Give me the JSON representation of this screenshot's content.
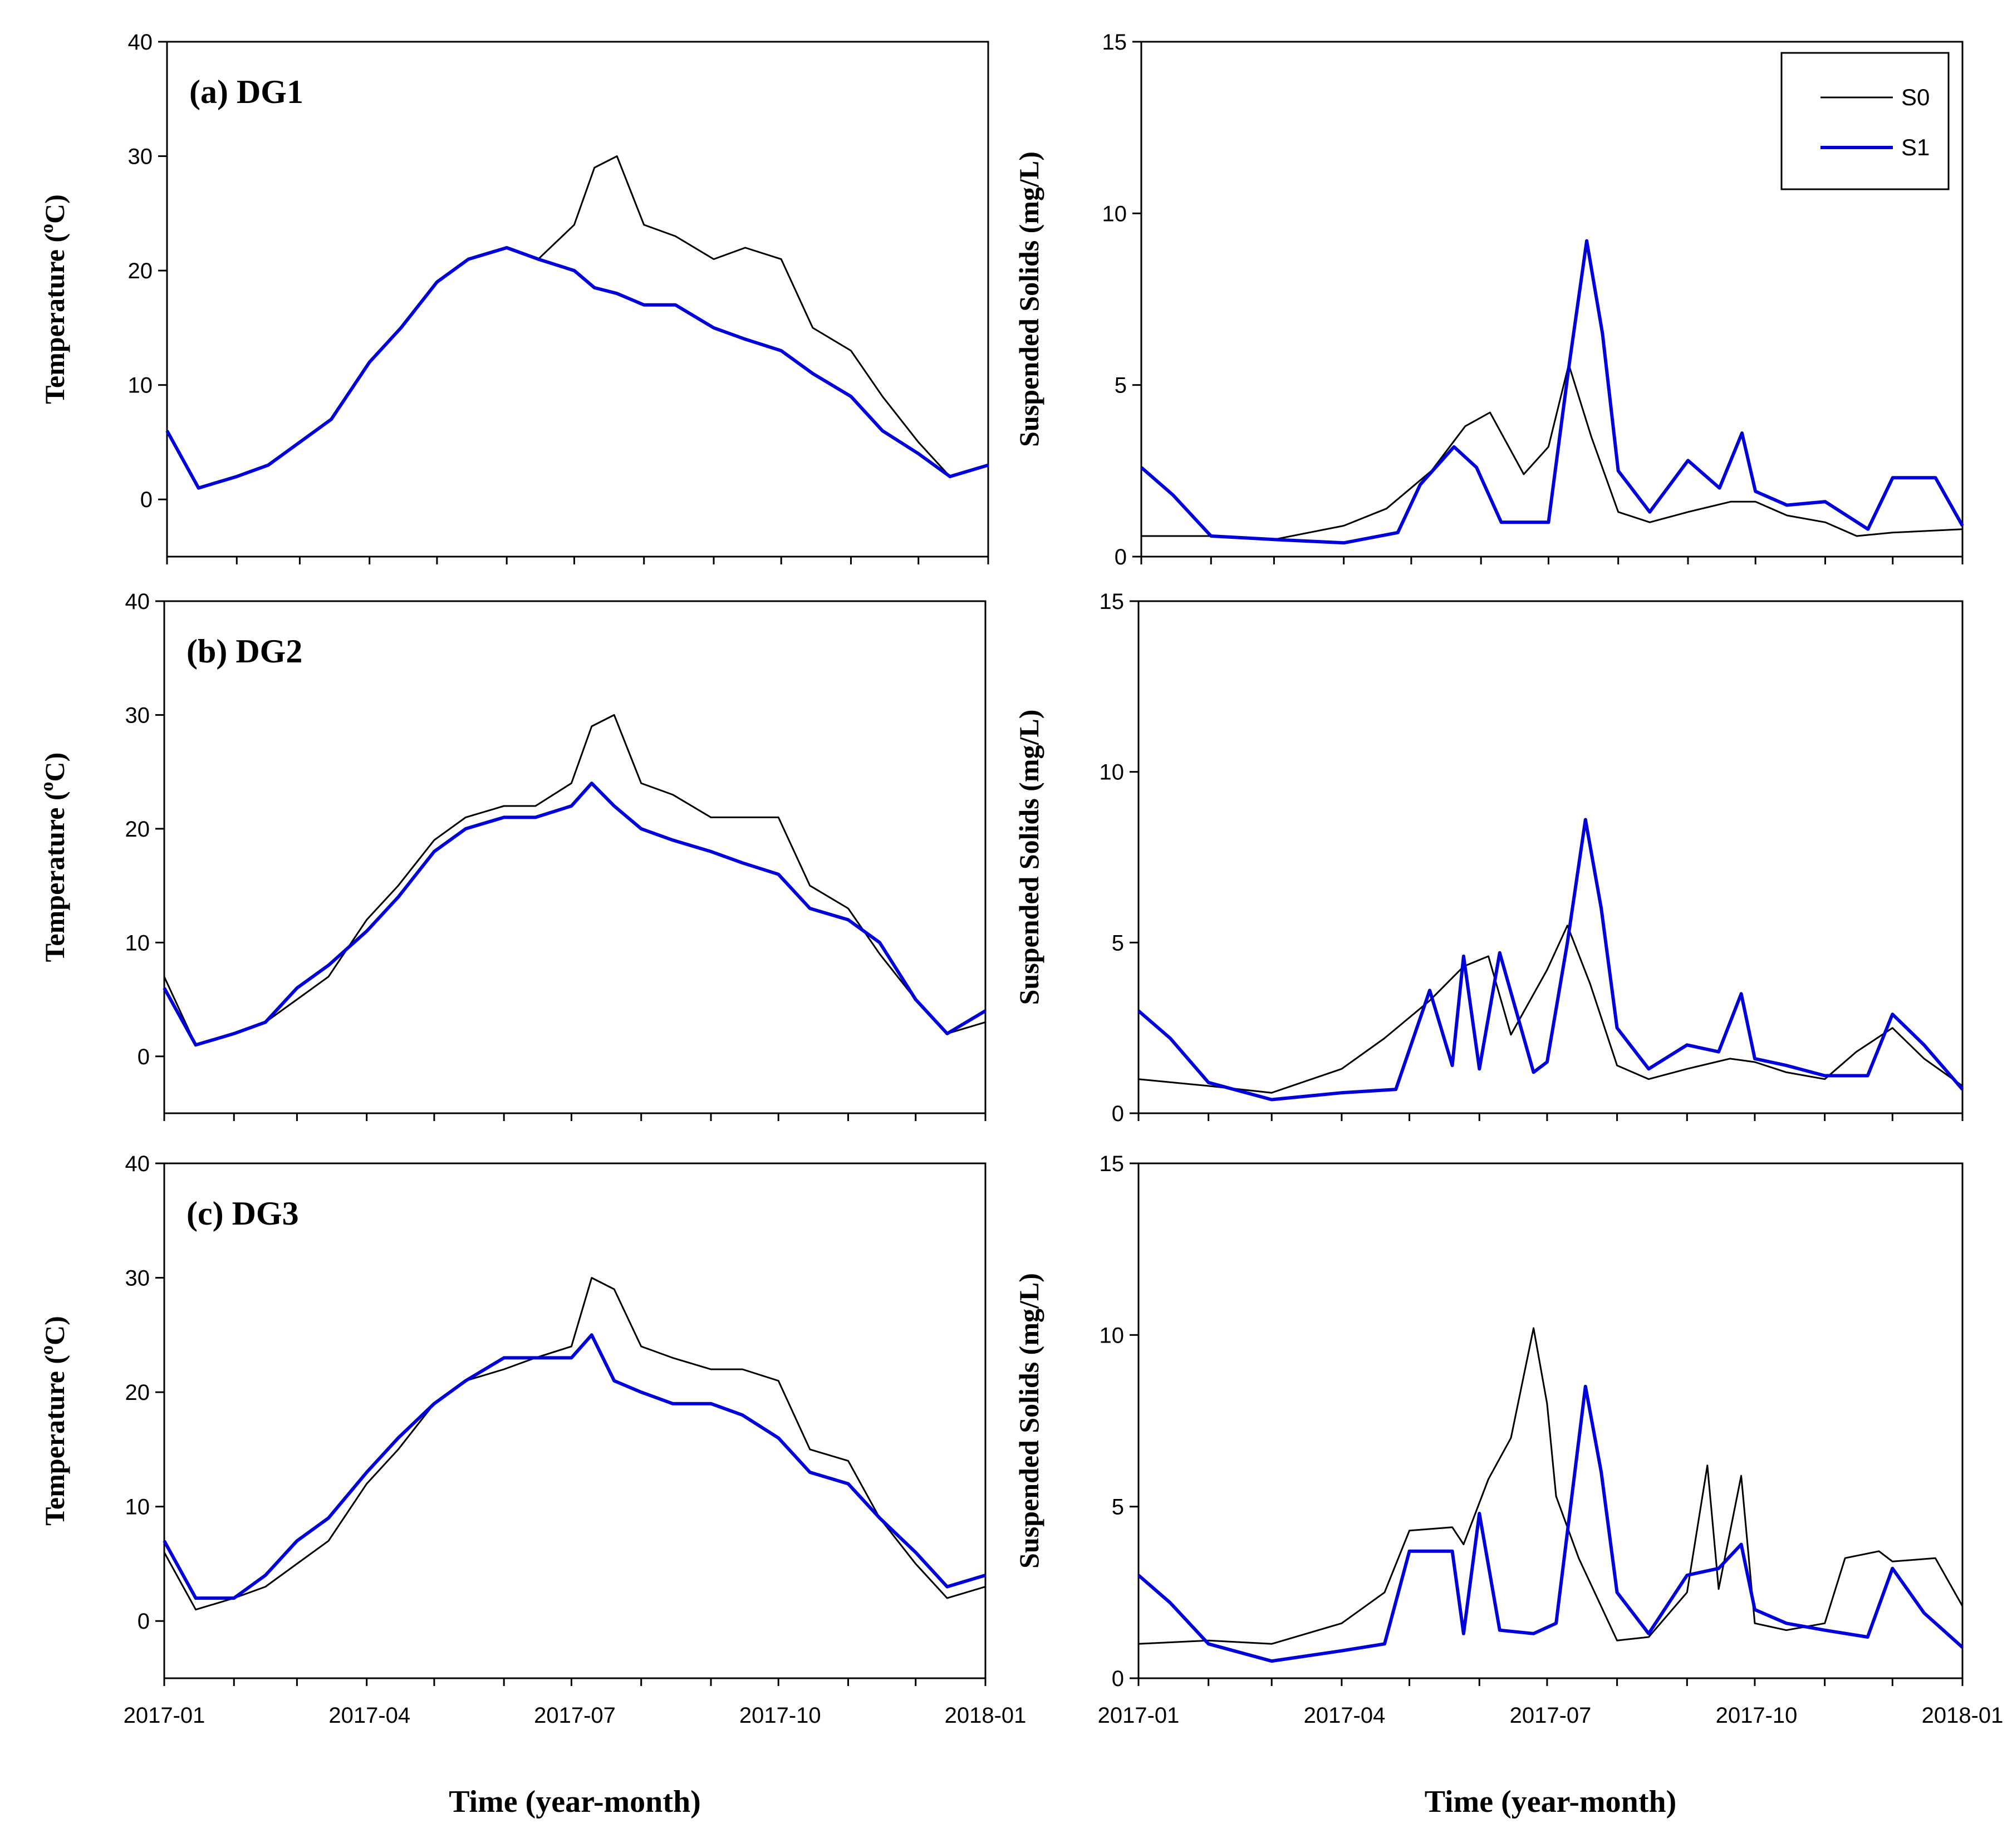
{
  "colors": {
    "S0": "#000000",
    "S1": "#0000dd"
  },
  "legend": [
    {
      "name": "S0",
      "color": "#000000"
    },
    {
      "name": "S1",
      "color": "#0000dd"
    }
  ],
  "x_ticks": [
    "2017-01",
    "2017-04",
    "2017-07",
    "2017-10",
    "2018-01"
  ],
  "x_axis_label": "Time (year-month)",
  "chart_data": [
    {
      "type": "line",
      "panel_label": "(a) DG1",
      "ylabel": "Temperature (",
      "ylabel_sup": "o",
      "ylabel_tail": "C)",
      "yticks": [
        0,
        10,
        20,
        30,
        40
      ],
      "ylim": [
        -5,
        40
      ],
      "xlim": [
        "2017-01-01",
        "2018-01-01"
      ],
      "series": [
        {
          "name": "S0",
          "x": [
            "2017-01-01",
            "2017-01-15",
            "2017-02-01",
            "2017-02-15",
            "2017-03-01",
            "2017-03-15",
            "2017-04-01",
            "2017-04-15",
            "2017-05-01",
            "2017-05-15",
            "2017-06-01",
            "2017-06-15",
            "2017-07-01",
            "2017-07-10",
            "2017-07-20",
            "2017-08-01",
            "2017-08-15",
            "2017-09-01",
            "2017-09-15",
            "2017-10-01",
            "2017-10-15",
            "2017-11-01",
            "2017-11-15",
            "2017-12-01",
            "2017-12-15",
            "2018-01-01"
          ],
          "y": [
            6,
            1,
            2,
            3,
            5,
            7,
            12,
            15,
            19,
            21,
            22,
            21,
            24,
            29,
            30,
            24,
            23,
            21,
            22,
            21,
            15,
            13,
            9,
            5,
            2,
            3
          ]
        },
        {
          "name": "S1",
          "x": [
            "2017-01-01",
            "2017-01-15",
            "2017-02-01",
            "2017-02-15",
            "2017-03-01",
            "2017-03-15",
            "2017-04-01",
            "2017-04-15",
            "2017-05-01",
            "2017-05-15",
            "2017-06-01",
            "2017-06-15",
            "2017-07-01",
            "2017-07-10",
            "2017-07-20",
            "2017-08-01",
            "2017-08-15",
            "2017-09-01",
            "2017-09-15",
            "2017-10-01",
            "2017-10-15",
            "2017-11-01",
            "2017-11-15",
            "2017-12-01",
            "2017-12-15",
            "2018-01-01"
          ],
          "y": [
            6,
            1,
            2,
            3,
            5,
            7,
            12,
            15,
            19,
            21,
            22,
            21,
            20,
            18.5,
            18,
            17,
            17,
            15,
            14,
            13,
            11,
            9,
            6,
            4,
            2,
            3
          ]
        }
      ]
    },
    {
      "type": "line",
      "ylabel": "Suspended Solids (mg/L)",
      "yticks": [
        0,
        5,
        10,
        15
      ],
      "ylim": [
        0,
        15
      ],
      "xlim": [
        "2017-01-01",
        "2018-01-01"
      ],
      "legend": "top-right",
      "series": [
        {
          "name": "S0",
          "x": [
            "2017-01-01",
            "2017-02-01",
            "2017-03-01",
            "2017-04-01",
            "2017-04-20",
            "2017-05-10",
            "2017-05-25",
            "2017-06-05",
            "2017-06-20",
            "2017-07-01",
            "2017-07-10",
            "2017-07-20",
            "2017-08-01",
            "2017-08-15",
            "2017-09-01",
            "2017-09-20",
            "2017-10-01",
            "2017-10-15",
            "2017-11-01",
            "2017-11-15",
            "2017-12-01",
            "2018-01-01"
          ],
          "y": [
            0.6,
            0.6,
            0.5,
            0.9,
            1.4,
            2.5,
            3.8,
            4.2,
            2.4,
            3.2,
            5.6,
            3.5,
            1.3,
            1,
            1.3,
            1.6,
            1.6,
            1.2,
            1,
            0.6,
            0.7,
            0.8
          ]
        },
        {
          "name": "S1",
          "x": [
            "2017-01-01",
            "2017-01-15",
            "2017-02-01",
            "2017-03-01",
            "2017-04-01",
            "2017-04-25",
            "2017-05-05",
            "2017-05-20",
            "2017-05-30",
            "2017-06-10",
            "2017-06-25",
            "2017-07-01",
            "2017-07-10",
            "2017-07-18",
            "2017-07-25",
            "2017-08-01",
            "2017-08-15",
            "2017-09-01",
            "2017-09-15",
            "2017-09-25",
            "2017-10-01",
            "2017-10-15",
            "2017-11-01",
            "2017-11-20",
            "2017-12-01",
            "2017-12-20",
            "2018-01-01"
          ],
          "y": [
            2.6,
            1.8,
            0.6,
            0.5,
            0.4,
            0.7,
            2.1,
            3.2,
            2.6,
            1,
            1,
            1,
            5.5,
            9.2,
            6.5,
            2.5,
            1.3,
            2.8,
            2,
            3.6,
            1.9,
            1.5,
            1.6,
            0.8,
            2.3,
            2.3,
            0.9
          ]
        }
      ]
    },
    {
      "type": "line",
      "panel_label": "(b) DG2",
      "ylabel": "Temperature (",
      "ylabel_sup": "o",
      "ylabel_tail": "C)",
      "yticks": [
        0,
        10,
        20,
        30,
        40
      ],
      "ylim": [
        -5,
        40
      ],
      "xlim": [
        "2017-01-01",
        "2018-01-01"
      ],
      "series": [
        {
          "name": "S0",
          "x": [
            "2017-01-01",
            "2017-01-15",
            "2017-02-01",
            "2017-02-15",
            "2017-03-01",
            "2017-03-15",
            "2017-04-01",
            "2017-04-15",
            "2017-05-01",
            "2017-05-15",
            "2017-06-01",
            "2017-06-15",
            "2017-07-01",
            "2017-07-10",
            "2017-07-20",
            "2017-08-01",
            "2017-08-15",
            "2017-09-01",
            "2017-09-15",
            "2017-10-01",
            "2017-10-15",
            "2017-11-01",
            "2017-11-15",
            "2017-12-01",
            "2017-12-15",
            "2018-01-01"
          ],
          "y": [
            7,
            1,
            2,
            3,
            5,
            7,
            12,
            15,
            19,
            21,
            22,
            22,
            24,
            29,
            30,
            24,
            23,
            21,
            21,
            21,
            15,
            13,
            9,
            5,
            2,
            3
          ]
        },
        {
          "name": "S1",
          "x": [
            "2017-01-01",
            "2017-01-15",
            "2017-02-01",
            "2017-02-15",
            "2017-03-01",
            "2017-03-15",
            "2017-04-01",
            "2017-04-15",
            "2017-05-01",
            "2017-05-15",
            "2017-06-01",
            "2017-06-15",
            "2017-07-01",
            "2017-07-10",
            "2017-07-20",
            "2017-08-01",
            "2017-08-15",
            "2017-09-01",
            "2017-09-15",
            "2017-10-01",
            "2017-10-15",
            "2017-11-01",
            "2017-11-15",
            "2017-12-01",
            "2017-12-15",
            "2018-01-01"
          ],
          "y": [
            6,
            1,
            2,
            3,
            6,
            8,
            11,
            14,
            18,
            20,
            21,
            21,
            22,
            24,
            22,
            20,
            19,
            18,
            17,
            16,
            13,
            12,
            10,
            5,
            2,
            4
          ]
        }
      ]
    },
    {
      "type": "line",
      "ylabel": "Suspended Solids (mg/L)",
      "yticks": [
        0,
        5,
        10,
        15
      ],
      "ylim": [
        0,
        15
      ],
      "xlim": [
        "2017-01-01",
        "2018-01-01"
      ],
      "series": [
        {
          "name": "S0",
          "x": [
            "2017-01-01",
            "2017-02-01",
            "2017-03-01",
            "2017-04-01",
            "2017-04-20",
            "2017-05-10",
            "2017-05-25",
            "2017-06-05",
            "2017-06-15",
            "2017-07-01",
            "2017-07-10",
            "2017-07-20",
            "2017-08-01",
            "2017-08-15",
            "2017-09-01",
            "2017-09-20",
            "2017-10-01",
            "2017-10-15",
            "2017-11-01",
            "2017-11-15",
            "2017-12-01",
            "2017-12-15",
            "2018-01-01"
          ],
          "y": [
            1,
            0.8,
            0.6,
            1.3,
            2.2,
            3.3,
            4.3,
            4.6,
            2.3,
            4.2,
            5.5,
            3.8,
            1.4,
            1,
            1.3,
            1.6,
            1.5,
            1.2,
            1,
            1.8,
            2.5,
            1.6,
            0.8
          ]
        },
        {
          "name": "S1",
          "x": [
            "2017-01-01",
            "2017-01-15",
            "2017-02-01",
            "2017-03-01",
            "2017-04-01",
            "2017-04-25",
            "2017-05-10",
            "2017-05-20",
            "2017-05-25",
            "2017-06-01",
            "2017-06-10",
            "2017-06-25",
            "2017-07-01",
            "2017-07-10",
            "2017-07-18",
            "2017-07-25",
            "2017-08-01",
            "2017-08-15",
            "2017-09-01",
            "2017-09-15",
            "2017-09-25",
            "2017-10-01",
            "2017-10-15",
            "2017-11-01",
            "2017-11-20",
            "2017-12-01",
            "2017-12-15",
            "2018-01-01"
          ],
          "y": [
            3,
            2.2,
            0.9,
            0.4,
            0.6,
            0.7,
            3.6,
            1.4,
            4.6,
            1.3,
            4.7,
            1.2,
            1.5,
            5,
            8.6,
            6,
            2.5,
            1.3,
            2,
            1.8,
            3.5,
            1.6,
            1.4,
            1.1,
            1.1,
            2.9,
            2,
            0.7
          ]
        }
      ]
    },
    {
      "type": "line",
      "panel_label": "(c) DG3",
      "ylabel": "Temperature (",
      "ylabel_sup": "o",
      "ylabel_tail": "C)",
      "yticks": [
        0,
        10,
        20,
        30,
        40
      ],
      "ylim": [
        -5,
        40
      ],
      "xlim": [
        "2017-01-01",
        "2018-01-01"
      ],
      "series": [
        {
          "name": "S0",
          "x": [
            "2017-01-01",
            "2017-01-15",
            "2017-02-01",
            "2017-02-15",
            "2017-03-01",
            "2017-03-15",
            "2017-04-01",
            "2017-04-15",
            "2017-05-01",
            "2017-05-15",
            "2017-06-01",
            "2017-06-15",
            "2017-07-01",
            "2017-07-10",
            "2017-07-20",
            "2017-08-01",
            "2017-08-15",
            "2017-09-01",
            "2017-09-15",
            "2017-10-01",
            "2017-10-15",
            "2017-11-01",
            "2017-11-15",
            "2017-12-01",
            "2017-12-15",
            "2018-01-01"
          ],
          "y": [
            6,
            1,
            2,
            3,
            5,
            7,
            12,
            15,
            19,
            21,
            22,
            23,
            24,
            30,
            29,
            24,
            23,
            22,
            22,
            21,
            15,
            14,
            9,
            5,
            2,
            3
          ]
        },
        {
          "name": "S1",
          "x": [
            "2017-01-01",
            "2017-01-15",
            "2017-02-01",
            "2017-02-15",
            "2017-03-01",
            "2017-03-15",
            "2017-04-01",
            "2017-04-15",
            "2017-05-01",
            "2017-05-15",
            "2017-06-01",
            "2017-06-15",
            "2017-07-01",
            "2017-07-10",
            "2017-07-20",
            "2017-08-01",
            "2017-08-15",
            "2017-09-01",
            "2017-09-15",
            "2017-10-01",
            "2017-10-15",
            "2017-11-01",
            "2017-11-15",
            "2017-12-01",
            "2017-12-15",
            "2018-01-01"
          ],
          "y": [
            7,
            2,
            2,
            4,
            7,
            9,
            13,
            16,
            19,
            21,
            23,
            23,
            23,
            25,
            21,
            20,
            19,
            19,
            18,
            16,
            13,
            12,
            9,
            6,
            3,
            4
          ]
        }
      ]
    },
    {
      "type": "line",
      "ylabel": "Suspended Solids (mg/L)",
      "yticks": [
        0,
        5,
        10,
        15
      ],
      "ylim": [
        0,
        15
      ],
      "xlim": [
        "2017-01-01",
        "2018-01-01"
      ],
      "series": [
        {
          "name": "S0",
          "x": [
            "2017-01-01",
            "2017-02-01",
            "2017-03-01",
            "2017-04-01",
            "2017-04-20",
            "2017-05-01",
            "2017-05-20",
            "2017-05-25",
            "2017-06-05",
            "2017-06-15",
            "2017-06-25",
            "2017-07-01",
            "2017-07-05",
            "2017-07-15",
            "2017-08-01",
            "2017-08-15",
            "2017-09-01",
            "2017-09-10",
            "2017-09-15",
            "2017-09-25",
            "2017-10-01",
            "2017-10-15",
            "2017-11-01",
            "2017-11-10",
            "2017-11-25",
            "2017-12-01",
            "2017-12-20",
            "2018-01-01"
          ],
          "y": [
            1,
            1.1,
            1,
            1.6,
            2.5,
            4.3,
            4.4,
            3.9,
            5.8,
            7,
            10.2,
            8,
            5.3,
            3.5,
            1.1,
            1.2,
            2.5,
            6.2,
            2.6,
            5.9,
            1.6,
            1.4,
            1.6,
            3.5,
            3.7,
            3.4,
            3.5,
            2.1
          ]
        },
        {
          "name": "S1",
          "x": [
            "2017-01-01",
            "2017-01-15",
            "2017-02-01",
            "2017-03-01",
            "2017-04-01",
            "2017-04-20",
            "2017-05-01",
            "2017-05-20",
            "2017-05-25",
            "2017-06-01",
            "2017-06-10",
            "2017-06-25",
            "2017-07-05",
            "2017-07-18",
            "2017-07-25",
            "2017-08-01",
            "2017-08-15",
            "2017-09-01",
            "2017-09-15",
            "2017-09-25",
            "2017-10-01",
            "2017-10-15",
            "2017-11-01",
            "2017-11-20",
            "2017-12-01",
            "2017-12-15",
            "2018-01-01"
          ],
          "y": [
            3,
            2.2,
            1,
            0.5,
            0.8,
            1,
            3.7,
            3.7,
            1.3,
            4.8,
            1.4,
            1.3,
            1.6,
            8.5,
            6,
            2.5,
            1.3,
            3,
            3.2,
            3.9,
            2,
            1.6,
            1.4,
            1.2,
            3.2,
            1.9,
            0.9
          ]
        }
      ]
    }
  ]
}
